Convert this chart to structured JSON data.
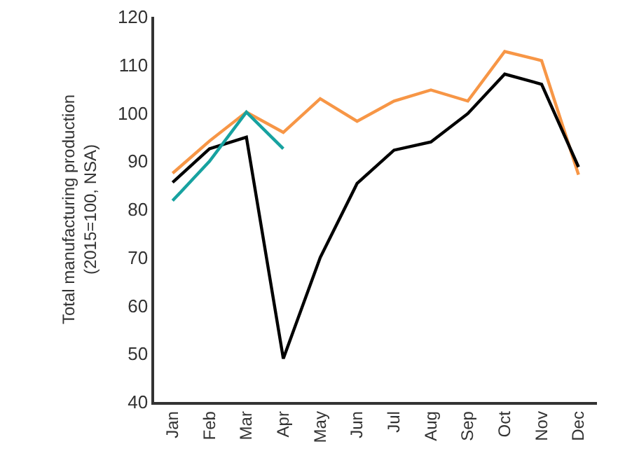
{
  "chart_data": {
    "type": "line",
    "ylabel": "Total manufacturing production\n(2015=100, NSA)",
    "categories": [
      "Jan",
      "Feb",
      "Mar",
      "Apr",
      "May",
      "Jun",
      "Jul",
      "Aug",
      "Sep",
      "Oct",
      "Nov",
      "Dec"
    ],
    "series": [
      {
        "color": "#f79646",
        "values": [
          87.5,
          94.2,
          100.2,
          96,
          103,
          98.3,
          102.5,
          104.8,
          102.5,
          112.8,
          110.9,
          87.2
        ]
      },
      {
        "color": "#000000",
        "values": [
          85.6,
          92.6,
          95,
          49,
          70,
          85.4,
          92.3,
          94,
          99.9,
          108.1,
          106,
          88.8
        ]
      },
      {
        "color": "#17a2a0",
        "values": [
          81.8,
          90,
          100.2,
          92.6,
          null,
          null,
          null,
          null,
          null,
          null,
          null,
          null
        ]
      }
    ],
    "ylim": [
      40,
      120
    ],
    "yticks": [
      40,
      50,
      60,
      70,
      80,
      90,
      100,
      110,
      120
    ],
    "grid": false,
    "marker": "none",
    "line_style": "solid"
  }
}
